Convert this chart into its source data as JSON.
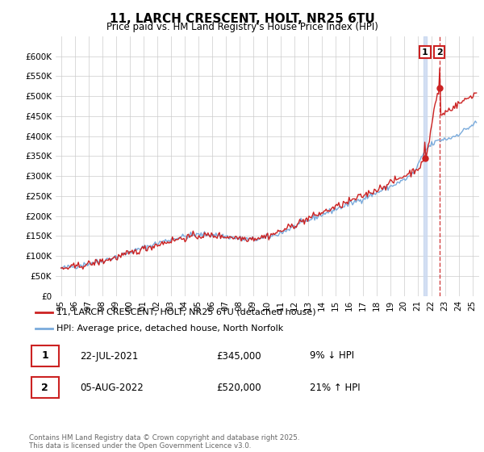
{
  "title": "11, LARCH CRESCENT, HOLT, NR25 6TU",
  "subtitle": "Price paid vs. HM Land Registry's House Price Index (HPI)",
  "ylim": [
    0,
    650000
  ],
  "yticks": [
    0,
    50000,
    100000,
    150000,
    200000,
    250000,
    300000,
    350000,
    400000,
    450000,
    500000,
    550000,
    600000
  ],
  "ytick_labels": [
    "£0",
    "£50K",
    "£100K",
    "£150K",
    "£200K",
    "£250K",
    "£300K",
    "£350K",
    "£400K",
    "£450K",
    "£500K",
    "£550K",
    "£600K"
  ],
  "hpi_color": "#7aabdc",
  "price_color": "#cc2222",
  "transaction1_x": 2021.55,
  "transaction2_x": 2022.59,
  "legend_label1": "11, LARCH CRESCENT, HOLT, NR25 6TU (detached house)",
  "legend_label2": "HPI: Average price, detached house, North Norfolk",
  "table_row1": [
    "1",
    "22-JUL-2021",
    "£345,000",
    "9% ↓ HPI"
  ],
  "table_row2": [
    "2",
    "05-AUG-2022",
    "£520,000",
    "21% ↑ HPI"
  ],
  "footer": "Contains HM Land Registry data © Crown copyright and database right 2025.\nThis data is licensed under the Open Government Licence v3.0.",
  "bg_color": "#ffffff",
  "grid_color": "#cccccc"
}
